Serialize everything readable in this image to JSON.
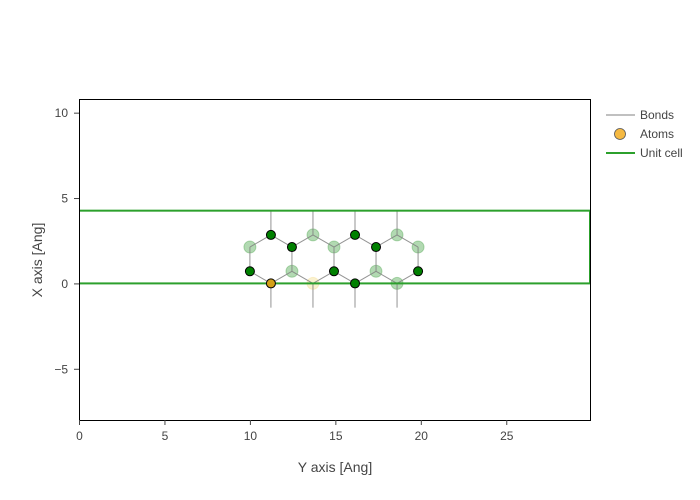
{
  "chart_data": {
    "type": "scatter",
    "xlabel": "Y axis [Ang]",
    "ylabel": "X axis [Ang]",
    "xlim": [
      0,
      29.9
    ],
    "ylim": [
      -8,
      10.8
    ],
    "xticks": [
      0,
      5,
      10,
      15,
      20,
      25
    ],
    "yticks": [
      10,
      5,
      0,
      -5
    ],
    "ytick_labels": [
      "10",
      "5",
      "0",
      "−5"
    ],
    "grid": false,
    "legend_position": "right",
    "legend": [
      {
        "label": "Bonds",
        "kind": "line",
        "color": "#808080"
      },
      {
        "label": "Atoms",
        "kind": "marker",
        "color": "#f5b942"
      },
      {
        "label": "Unit cell",
        "kind": "line",
        "color": "#2ca02c"
      }
    ],
    "unit_cell": {
      "x": [
        0,
        29.9
      ],
      "y": [
        0,
        4.26
      ],
      "color": "#2ca02c"
    },
    "atoms_front": [
      {
        "x": 10.0,
        "y": 0.71,
        "color": "#008000"
      },
      {
        "x": 11.23,
        "y": 2.84,
        "color": "#008000"
      },
      {
        "x": 12.46,
        "y": 2.13,
        "color": "#008000"
      },
      {
        "x": 14.92,
        "y": 0.71,
        "color": "#008000"
      },
      {
        "x": 16.15,
        "y": 2.84,
        "color": "#008000"
      },
      {
        "x": 16.15,
        "y": 0.0,
        "color": "#008000"
      },
      {
        "x": 17.38,
        "y": 2.13,
        "color": "#008000"
      },
      {
        "x": 19.84,
        "y": 0.71,
        "color": "#008000"
      },
      {
        "x": 11.23,
        "y": 0.0,
        "color": "#d4a017"
      }
    ],
    "atoms_back": [
      {
        "x": 10.0,
        "y": 2.13,
        "color": "#008000"
      },
      {
        "x": 12.46,
        "y": 0.71,
        "color": "#008000"
      },
      {
        "x": 13.69,
        "y": 2.84,
        "color": "#008000"
      },
      {
        "x": 14.92,
        "y": 2.13,
        "color": "#008000"
      },
      {
        "x": 17.38,
        "y": 0.71,
        "color": "#008000"
      },
      {
        "x": 18.61,
        "y": 2.84,
        "color": "#008000"
      },
      {
        "x": 18.61,
        "y": 0.0,
        "color": "#008000"
      },
      {
        "x": 19.84,
        "y": 2.13,
        "color": "#008000"
      },
      {
        "x": 13.69,
        "y": 0.0,
        "color": "#f0d060"
      }
    ],
    "bonds": [
      [
        10.0,
        0.71,
        10.0,
        2.13
      ],
      [
        10.0,
        2.13,
        11.23,
        2.84
      ],
      [
        11.23,
        2.84,
        12.46,
        2.13
      ],
      [
        12.46,
        2.13,
        12.46,
        0.71
      ],
      [
        12.46,
        0.71,
        11.23,
        0.0
      ],
      [
        11.23,
        0.0,
        10.0,
        0.71
      ],
      [
        12.46,
        2.13,
        13.69,
        2.84
      ],
      [
        13.69,
        2.84,
        14.92,
        2.13
      ],
      [
        14.92,
        2.13,
        14.92,
        0.71
      ],
      [
        14.92,
        0.71,
        13.69,
        0.0
      ],
      [
        13.69,
        0.0,
        12.46,
        0.71
      ],
      [
        14.92,
        2.13,
        16.15,
        2.84
      ],
      [
        16.15,
        2.84,
        17.38,
        2.13
      ],
      [
        17.38,
        2.13,
        17.38,
        0.71
      ],
      [
        17.38,
        0.71,
        16.15,
        0.0
      ],
      [
        16.15,
        0.0,
        14.92,
        0.71
      ],
      [
        17.38,
        2.13,
        18.61,
        2.84
      ],
      [
        18.61,
        2.84,
        19.84,
        2.13
      ],
      [
        19.84,
        2.13,
        19.84,
        0.71
      ],
      [
        19.84,
        0.71,
        18.61,
        0.0
      ],
      [
        18.61,
        0.0,
        17.38,
        0.71
      ],
      [
        11.23,
        2.84,
        11.23,
        4.26
      ],
      [
        13.69,
        2.84,
        13.69,
        4.26
      ],
      [
        16.15,
        2.84,
        16.15,
        4.26
      ],
      [
        18.61,
        2.84,
        18.61,
        4.26
      ],
      [
        11.23,
        0.0,
        11.23,
        -1.42
      ],
      [
        13.69,
        0.0,
        13.69,
        -1.42
      ],
      [
        16.15,
        0.0,
        16.15,
        -1.42
      ],
      [
        18.61,
        0.0,
        18.61,
        -1.42
      ]
    ]
  }
}
